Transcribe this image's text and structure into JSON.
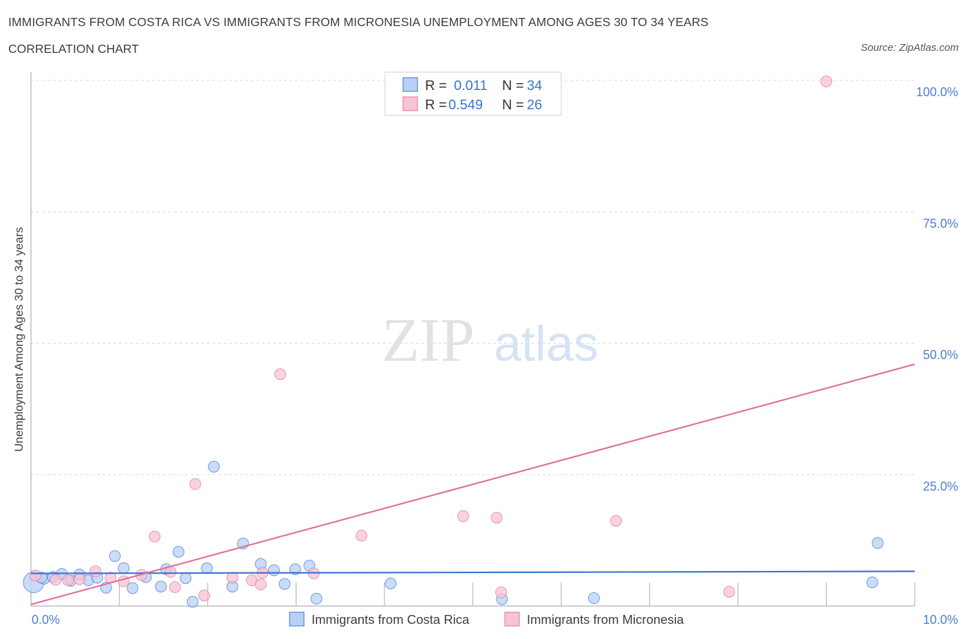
{
  "title": "IMMIGRANTS FROM COSTA RICA VS IMMIGRANTS FROM MICRONESIA UNEMPLOYMENT AMONG AGES 30 TO 34 YEARS",
  "subtitle": "CORRELATION CHART",
  "source": "Source: ZipAtlas.com",
  "watermark": {
    "zip": "ZIP",
    "atlas": "atlas"
  },
  "colors": {
    "blue": "#3a74d4",
    "blue_fill": "#b8d0f5",
    "pink": "#e0709a",
    "pink_fill": "#f8c3d3",
    "tick_text": "#4a7fd0",
    "grid": "#d8d8d8"
  },
  "stats_box": {
    "rows": [
      {
        "r_label": "R =",
        "r_value": "0.011",
        "n_label": "N =",
        "n_value": "34"
      },
      {
        "r_label": "R =",
        "r_value": "0.549",
        "n_label": "N =",
        "n_value": "26"
      }
    ]
  },
  "chart_data": {
    "type": "scatter",
    "title": "IMMIGRANTS FROM COSTA RICA VS IMMIGRANTS FROM MICRONESIA UNEMPLOYMENT AMONG AGES 30 TO 34 YEARS",
    "subtitle": "CORRELATION CHART",
    "xlabel": "",
    "ylabel": "Unemployment Among Ages 30 to 34 years",
    "xlim": [
      0,
      10
    ],
    "ylim": [
      0,
      100
    ],
    "x_tick_labels": [
      "0.0%",
      "10.0%"
    ],
    "y_tick_labels": [
      "100.0%",
      "75.0%",
      "50.0%",
      "25.0%"
    ],
    "y_tick_values": [
      100,
      75,
      50,
      25
    ],
    "grid": true,
    "legend_position": "bottom-center",
    "series": [
      {
        "name": "Immigrants from Costa Rica",
        "color": "#3a74d4",
        "fill": "#b8d0f5",
        "trend": {
          "x": [
            0,
            10
          ],
          "y": [
            6.2,
            6.6
          ]
        },
        "points": [
          {
            "x": 0.03,
            "y": 4.5,
            "big": true
          },
          {
            "x": 0.15,
            "y": 5.2
          },
          {
            "x": 0.25,
            "y": 5.5
          },
          {
            "x": 0.35,
            "y": 6.1
          },
          {
            "x": 0.45,
            "y": 4.8
          },
          {
            "x": 0.55,
            "y": 6.0
          },
          {
            "x": 0.65,
            "y": 4.9
          },
          {
            "x": 0.75,
            "y": 5.4
          },
          {
            "x": 0.85,
            "y": 3.5
          },
          {
            "x": 0.95,
            "y": 9.5
          },
          {
            "x": 1.05,
            "y": 7.2
          },
          {
            "x": 1.15,
            "y": 3.4
          },
          {
            "x": 1.3,
            "y": 5.5
          },
          {
            "x": 1.47,
            "y": 3.7
          },
          {
            "x": 1.53,
            "y": 7.0
          },
          {
            "x": 1.67,
            "y": 10.3
          },
          {
            "x": 1.75,
            "y": 5.3
          },
          {
            "x": 1.83,
            "y": 0.8
          },
          {
            "x": 1.99,
            "y": 7.2
          },
          {
            "x": 2.07,
            "y": 26.5
          },
          {
            "x": 2.28,
            "y": 3.7
          },
          {
            "x": 2.4,
            "y": 11.9
          },
          {
            "x": 2.6,
            "y": 8.0
          },
          {
            "x": 2.75,
            "y": 6.8
          },
          {
            "x": 2.87,
            "y": 4.2
          },
          {
            "x": 2.99,
            "y": 7.0
          },
          {
            "x": 3.15,
            "y": 7.7
          },
          {
            "x": 3.23,
            "y": 1.4
          },
          {
            "x": 4.07,
            "y": 4.3
          },
          {
            "x": 5.33,
            "y": 1.3
          },
          {
            "x": 6.37,
            "y": 1.5
          },
          {
            "x": 9.52,
            "y": 4.5
          },
          {
            "x": 9.58,
            "y": 12.0
          },
          {
            "x": 0.12,
            "y": 5.4
          }
        ]
      },
      {
        "name": "Immigrants from Micronesia",
        "color": "#e0709a",
        "fill": "#f8c3d3",
        "trend": {
          "x": [
            0,
            10
          ],
          "y": [
            0.3,
            46.0
          ]
        },
        "points": [
          {
            "x": 0.05,
            "y": 5.8
          },
          {
            "x": 0.28,
            "y": 5.0
          },
          {
            "x": 0.42,
            "y": 4.9
          },
          {
            "x": 0.55,
            "y": 5.1
          },
          {
            "x": 0.73,
            "y": 6.6
          },
          {
            "x": 0.9,
            "y": 5.4
          },
          {
            "x": 1.05,
            "y": 4.7
          },
          {
            "x": 1.25,
            "y": 5.9
          },
          {
            "x": 1.4,
            "y": 13.2
          },
          {
            "x": 1.58,
            "y": 6.5
          },
          {
            "x": 1.63,
            "y": 3.6
          },
          {
            "x": 1.86,
            "y": 23.2
          },
          {
            "x": 1.96,
            "y": 2.0
          },
          {
            "x": 2.28,
            "y": 5.4
          },
          {
            "x": 2.5,
            "y": 4.9
          },
          {
            "x": 2.6,
            "y": 4.1
          },
          {
            "x": 2.62,
            "y": 6.3
          },
          {
            "x": 2.82,
            "y": 44.1
          },
          {
            "x": 3.2,
            "y": 6.2
          },
          {
            "x": 3.74,
            "y": 13.4
          },
          {
            "x": 4.89,
            "y": 17.1
          },
          {
            "x": 5.27,
            "y": 16.8
          },
          {
            "x": 5.32,
            "y": 2.6
          },
          {
            "x": 6.62,
            "y": 16.2
          },
          {
            "x": 7.9,
            "y": 2.7
          },
          {
            "x": 9.0,
            "y": 99.8
          }
        ]
      }
    ]
  }
}
